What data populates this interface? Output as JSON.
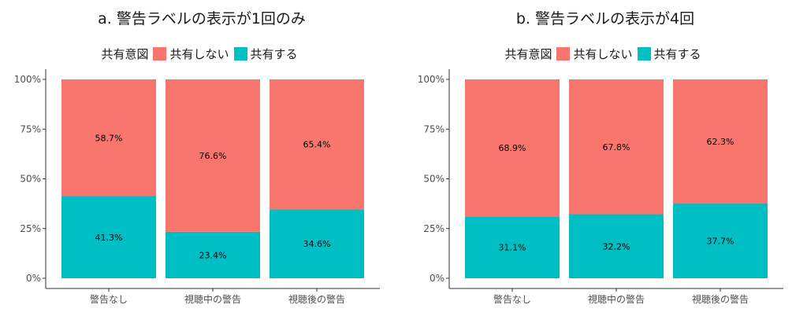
{
  "colors": {
    "no_share": "#F8766D",
    "share": "#00BFC4"
  },
  "legend": {
    "title": "共有意図",
    "no_share": "共有しない",
    "share": "共有する"
  },
  "chart_data": [
    {
      "type": "bar",
      "stacked": true,
      "title": "a. 警告ラベルの表示が1回のみ",
      "categories": [
        "警告なし",
        "視聴中の警告",
        "視聴後の警告"
      ],
      "y_ticks": [
        "0%",
        "25%",
        "50%",
        "75%",
        "100%"
      ],
      "ylim": [
        0,
        100
      ],
      "series": [
        {
          "name": "共有しない",
          "values": [
            58.7,
            76.6,
            65.4
          ],
          "labels": [
            "58.7%",
            "76.6%",
            "65.4%"
          ]
        },
        {
          "name": "共有する",
          "values": [
            41.3,
            23.4,
            34.6
          ],
          "labels": [
            "41.3%",
            "23.4%",
            "34.6%"
          ]
        }
      ]
    },
    {
      "type": "bar",
      "stacked": true,
      "title": "b. 警告ラベルの表示が4回",
      "categories": [
        "警告なし",
        "視聴中の警告",
        "視聴後の警告"
      ],
      "y_ticks": [
        "0%",
        "25%",
        "50%",
        "75%",
        "100%"
      ],
      "ylim": [
        0,
        100
      ],
      "series": [
        {
          "name": "共有しない",
          "values": [
            68.9,
            67.8,
            62.3
          ],
          "labels": [
            "68.9%",
            "67.8%",
            "62.3%"
          ]
        },
        {
          "name": "共有する",
          "values": [
            31.1,
            32.2,
            37.7
          ],
          "labels": [
            "31.1%",
            "32.2%",
            "37.7%"
          ]
        }
      ]
    }
  ]
}
